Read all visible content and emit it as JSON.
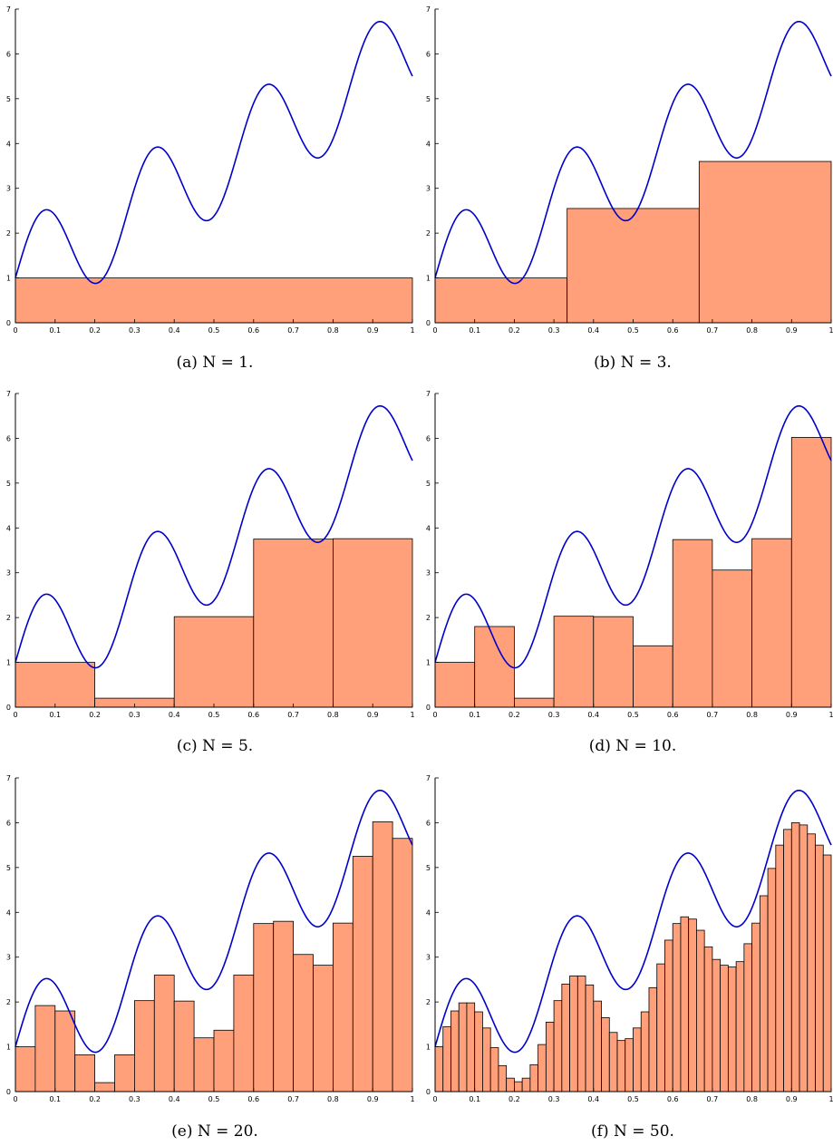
{
  "figure": {
    "curve_color": "#0000cc",
    "bar_color": "#ffa07a",
    "edge_color": "#000000"
  },
  "chart_data": [
    {
      "type": "bar",
      "caption": "(a) N = 1.",
      "N": 1,
      "xlim": [
        0,
        1
      ],
      "ylim": [
        0,
        7
      ],
      "xticks": [
        "0",
        "0.1",
        "0.2",
        "0.3",
        "0.4",
        "0.5",
        "0.6",
        "0.7",
        "0.8",
        "0.9",
        "1"
      ],
      "yticks": [
        "0",
        "1",
        "2",
        "3",
        "4",
        "5",
        "6",
        "7"
      ],
      "values": [
        1.0
      ]
    },
    {
      "type": "bar",
      "caption": "(b) N = 3.",
      "N": 3,
      "xlim": [
        0,
        1
      ],
      "ylim": [
        0,
        7
      ],
      "xticks": [
        "0",
        "0.1",
        "0.2",
        "0.3",
        "0.4",
        "0.5",
        "0.6",
        "0.7",
        "0.8",
        "0.9",
        "1"
      ],
      "yticks": [
        "0",
        "1",
        "2",
        "3",
        "4",
        "5",
        "6",
        "7"
      ],
      "values": [
        1.0,
        2.55,
        3.6
      ]
    },
    {
      "type": "bar",
      "caption": "(c) N = 5.",
      "N": 5,
      "xlim": [
        0,
        1
      ],
      "ylim": [
        0,
        7
      ],
      "xticks": [
        "0",
        "0.1",
        "0.2",
        "0.3",
        "0.4",
        "0.5",
        "0.6",
        "0.7",
        "0.8",
        "0.9",
        "1"
      ],
      "yticks": [
        "0",
        "1",
        "2",
        "3",
        "4",
        "5",
        "6",
        "7"
      ],
      "values": [
        1.0,
        0.2,
        2.02,
        3.75,
        3.76
      ]
    },
    {
      "type": "bar",
      "caption": "(d) N = 10.",
      "N": 10,
      "xlim": [
        0,
        1
      ],
      "ylim": [
        0,
        7
      ],
      "xticks": [
        "0",
        "0.1",
        "0.2",
        "0.3",
        "0.4",
        "0.5",
        "0.6",
        "0.7",
        "0.8",
        "0.9",
        "1"
      ],
      "yticks": [
        "0",
        "1",
        "2",
        "3",
        "4",
        "5",
        "6",
        "7"
      ],
      "values": [
        1.0,
        1.8,
        0.2,
        2.03,
        2.02,
        1.37,
        3.74,
        3.06,
        3.76,
        6.02
      ]
    },
    {
      "type": "bar",
      "caption": "(e) N = 20.",
      "N": 20,
      "xlim": [
        0,
        1
      ],
      "ylim": [
        0,
        7
      ],
      "xticks": [
        "0",
        "0.1",
        "0.2",
        "0.3",
        "0.4",
        "0.5",
        "0.6",
        "0.7",
        "0.8",
        "0.9",
        "1"
      ],
      "yticks": [
        "0",
        "1",
        "2",
        "3",
        "4",
        "5",
        "6",
        "7"
      ],
      "values": [
        1.0,
        1.92,
        1.8,
        0.82,
        0.2,
        0.82,
        2.03,
        2.6,
        2.02,
        1.2,
        1.37,
        2.6,
        3.75,
        3.8,
        3.06,
        2.82,
        3.76,
        5.25,
        6.02,
        5.65
      ]
    },
    {
      "type": "bar",
      "caption": "(f) N = 50.",
      "N": 50,
      "xlim": [
        0,
        1
      ],
      "ylim": [
        0,
        7
      ],
      "xticks": [
        "0",
        "0.1",
        "0.2",
        "0.3",
        "0.4",
        "0.5",
        "0.6",
        "0.7",
        "0.8",
        "0.9",
        "1"
      ],
      "yticks": [
        "0",
        "1",
        "2",
        "3",
        "4",
        "5",
        "6",
        "7"
      ],
      "values": [
        1.0,
        1.45,
        1.8,
        1.98,
        1.98,
        1.78,
        1.42,
        0.98,
        0.58,
        0.3,
        0.22,
        0.3,
        0.6,
        1.05,
        1.55,
        2.03,
        2.4,
        2.58,
        2.58,
        2.38,
        2.02,
        1.65,
        1.32,
        1.14,
        1.18,
        1.42,
        1.78,
        2.32,
        2.85,
        3.38,
        3.75,
        3.9,
        3.85,
        3.6,
        3.23,
        2.95,
        2.82,
        2.78,
        2.9,
        3.3,
        3.76,
        4.37,
        4.98,
        5.5,
        5.85,
        6.0,
        5.95,
        5.75,
        5.5,
        5.28
      ]
    }
  ]
}
